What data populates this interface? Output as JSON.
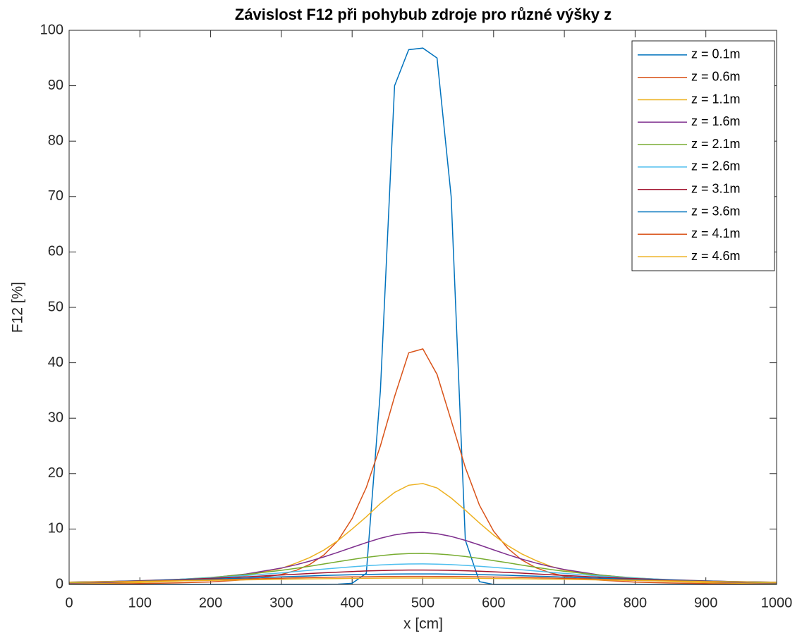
{
  "chart_data": {
    "type": "line",
    "title": "Závislost F12 při pohybub zdroje pro různé výšky z",
    "x_label": "x [cm]",
    "y_label": "F12 [%]",
    "x": [
      0,
      50,
      100,
      150,
      200,
      250,
      300,
      320,
      340,
      360,
      380,
      400,
      420,
      440,
      460,
      480,
      500,
      520,
      540,
      560,
      580,
      600,
      620,
      640,
      660,
      680,
      700,
      750,
      800,
      850,
      900,
      950,
      1000
    ],
    "series": [
      {
        "name": "z = 0.1m",
        "color": "#0072BD",
        "values": [
          0,
          0,
          0,
          0,
          0,
          0,
          0,
          0,
          0,
          0,
          0.05,
          0.2,
          2,
          35,
          90,
          96.5,
          96.8,
          95,
          70,
          8,
          0.5,
          0,
          0,
          0,
          0,
          0,
          0,
          0,
          0,
          0,
          0,
          0,
          0
        ]
      },
      {
        "name": "z = 0.6m",
        "color": "#D95319",
        "values": [
          0.07,
          0.1,
          0.16,
          0.27,
          0.45,
          0.86,
          1.8,
          2.5,
          3.6,
          5.3,
          7.9,
          11.9,
          17.5,
          25.0,
          33.9,
          41.8,
          42.5,
          37.9,
          29.6,
          21.1,
          14.3,
          9.6,
          6.5,
          4.4,
          3.0,
          2.1,
          1.5,
          0.78,
          0.42,
          0.25,
          0.15,
          0.09,
          0.06
        ]
      },
      {
        "name": "z = 1.1m",
        "color": "#EDB120",
        "values": [
          0.16,
          0.24,
          0.36,
          0.57,
          0.94,
          1.63,
          2.9,
          3.8,
          4.85,
          6.2,
          7.9,
          10.0,
          12.2,
          14.6,
          16.6,
          17.9,
          18.2,
          17.4,
          15.6,
          13.4,
          11.1,
          8.9,
          7.0,
          5.5,
          4.3,
          3.3,
          2.6,
          1.45,
          0.85,
          0.52,
          0.33,
          0.22,
          0.15
        ]
      },
      {
        "name": "z = 1.6m",
        "color": "#7E2F8E",
        "values": [
          0.26,
          0.36,
          0.53,
          0.79,
          1.2,
          1.87,
          2.95,
          3.52,
          4.2,
          4.96,
          5.8,
          6.68,
          7.54,
          8.33,
          8.94,
          9.3,
          9.4,
          9.16,
          8.66,
          7.95,
          7.12,
          6.23,
          5.37,
          4.57,
          3.85,
          3.22,
          2.69,
          1.71,
          1.1,
          0.72,
          0.49,
          0.34,
          0.24
        ]
      },
      {
        "name": "z = 2.1m",
        "color": "#77AC30",
        "values": [
          0.33,
          0.45,
          0.63,
          0.88,
          1.26,
          1.8,
          2.54,
          2.89,
          3.28,
          3.69,
          4.1,
          4.5,
          4.88,
          5.19,
          5.43,
          5.57,
          5.6,
          5.51,
          5.32,
          5.04,
          4.69,
          4.3,
          3.9,
          3.48,
          3.09,
          2.71,
          2.37,
          1.67,
          1.17,
          0.82,
          0.59,
          0.42,
          0.31
        ]
      },
      {
        "name": "z = 2.6m",
        "color": "#4DBEEE",
        "values": [
          0.38,
          0.5,
          0.67,
          0.9,
          1.2,
          1.6,
          2.09,
          2.31,
          2.54,
          2.76,
          2.98,
          3.18,
          3.37,
          3.51,
          3.62,
          3.69,
          3.7,
          3.66,
          3.57,
          3.44,
          3.28,
          3.08,
          2.87,
          2.65,
          2.42,
          2.2,
          1.99,
          1.52,
          1.14,
          0.85,
          0.63,
          0.48,
          0.36
        ]
      },
      {
        "name": "z = 3.1m",
        "color": "#A2142F",
        "values": [
          0.41,
          0.52,
          0.67,
          0.85,
          1.09,
          1.38,
          1.7,
          1.83,
          1.97,
          2.1,
          2.22,
          2.33,
          2.43,
          2.5,
          2.56,
          2.59,
          2.6,
          2.58,
          2.53,
          2.47,
          2.38,
          2.28,
          2.16,
          2.03,
          1.9,
          1.76,
          1.63,
          1.31,
          1.04,
          0.81,
          0.63,
          0.49,
          0.39
        ]
      },
      {
        "name": "z = 3.6m",
        "color": "#0072BD",
        "values": [
          0.41,
          0.51,
          0.63,
          0.78,
          0.95,
          1.15,
          1.36,
          1.45,
          1.53,
          1.61,
          1.68,
          1.75,
          1.8,
          1.85,
          1.88,
          1.9,
          1.9,
          1.89,
          1.86,
          1.83,
          1.77,
          1.72,
          1.65,
          1.57,
          1.49,
          1.41,
          1.32,
          1.11,
          0.92,
          0.75,
          0.6,
          0.49,
          0.39
        ]
      },
      {
        "name": "z = 4.1m",
        "color": "#D95319",
        "values": [
          0.4,
          0.48,
          0.58,
          0.7,
          0.83,
          0.97,
          1.11,
          1.17,
          1.22,
          1.27,
          1.32,
          1.36,
          1.39,
          1.42,
          1.44,
          1.45,
          1.45,
          1.44,
          1.43,
          1.41,
          1.37,
          1.34,
          1.3,
          1.25,
          1.2,
          1.14,
          1.09,
          0.94,
          0.8,
          0.67,
          0.56,
          0.46,
          0.38
        ]
      },
      {
        "name": "z = 4.6m",
        "color": "#EDB120",
        "values": [
          0.39,
          0.46,
          0.54,
          0.63,
          0.73,
          0.83,
          0.93,
          0.97,
          1.0,
          1.03,
          1.06,
          1.09,
          1.11,
          1.13,
          1.14,
          1.15,
          1.15,
          1.15,
          1.14,
          1.12,
          1.1,
          1.07,
          1.05,
          1.02,
          0.98,
          0.95,
          0.91,
          0.81,
          0.71,
          0.61,
          0.52,
          0.44,
          0.37
        ]
      }
    ],
    "xlim": [
      0,
      1000
    ],
    "xticks": [
      0,
      100,
      200,
      300,
      400,
      500,
      600,
      700,
      800,
      900,
      1000
    ],
    "ylim": [
      0,
      100
    ],
    "yticks": [
      0,
      10,
      20,
      30,
      40,
      50,
      60,
      70,
      80,
      90,
      100
    ],
    "grid": false,
    "legend": "northeast"
  }
}
